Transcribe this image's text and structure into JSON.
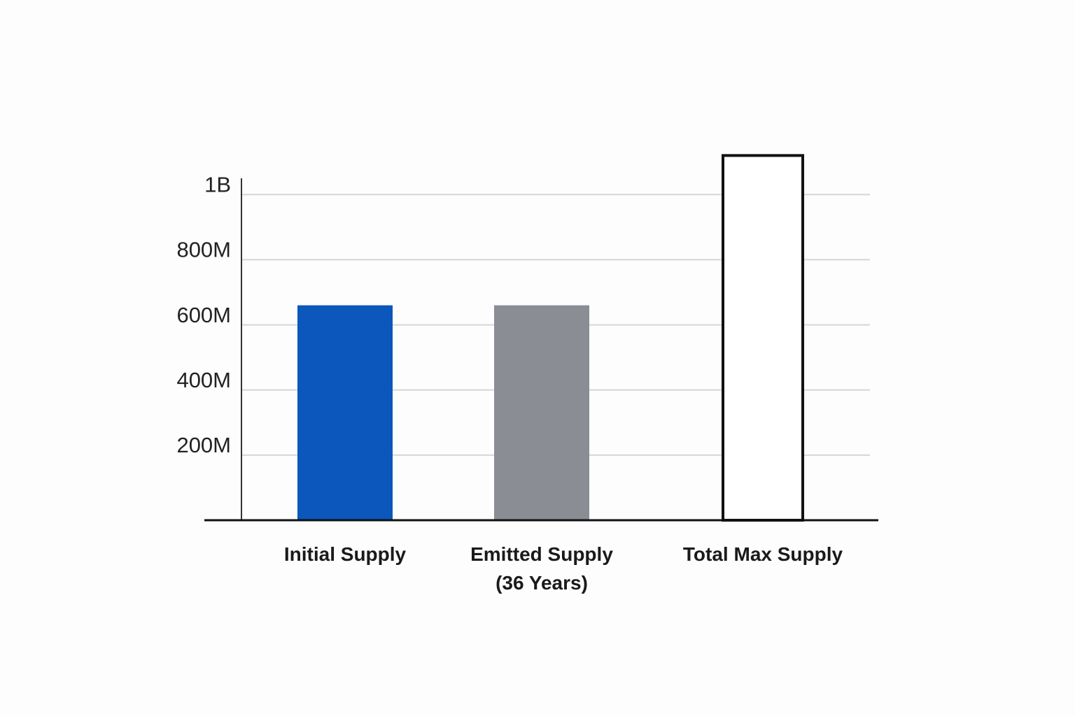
{
  "chart_data": {
    "type": "bar",
    "categories": [
      "Initial Supply",
      "Emitted Supply\n(36 Years)",
      "Total Max Supply"
    ],
    "values": [
      660000000,
      660000000,
      1120000000
    ],
    "colors": [
      "#0b57bb",
      "#8a8d93",
      "#ffffff"
    ],
    "edgecolors": [
      null,
      null,
      "#111111"
    ],
    "ylim": [
      0,
      1050000000
    ],
    "yticks": [
      {
        "value": 200000000,
        "label": "200M"
      },
      {
        "value": 400000000,
        "label": "400M"
      },
      {
        "value": 600000000,
        "label": "600M"
      },
      {
        "value": 800000000,
        "label": "800M"
      },
      {
        "value": 1000000000,
        "label": "1B"
      }
    ],
    "grid": true
  }
}
